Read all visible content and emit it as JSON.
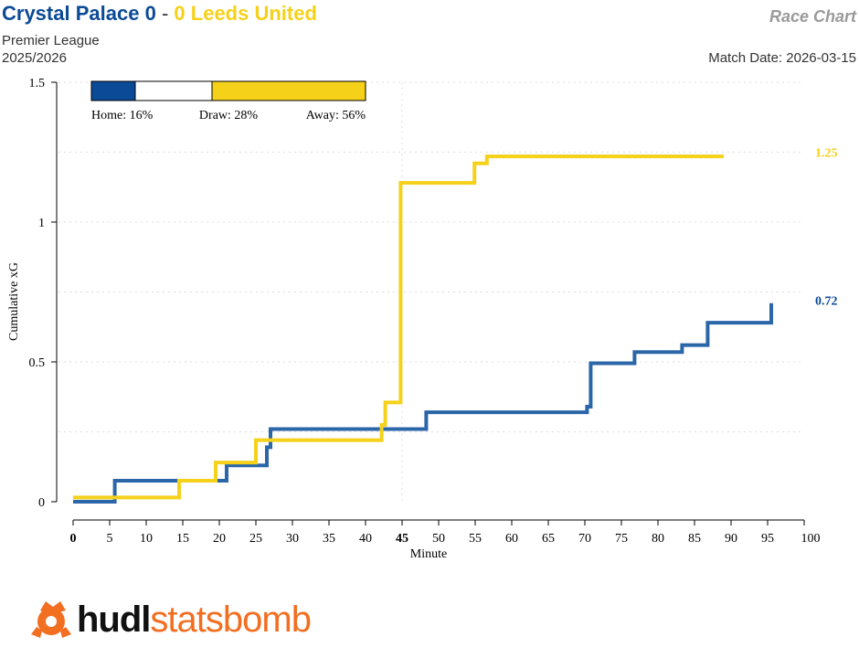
{
  "header": {
    "home_team": "Crystal Palace",
    "home_score": "0",
    "separator": "-",
    "away_score": "0",
    "away_team": "Leeds United",
    "competition": "Premier League",
    "season": "2025/2026",
    "chart_name": "Race Chart",
    "match_date_label": "Match Date:",
    "match_date": "2026-03-15"
  },
  "colors": {
    "home": "#2a66a8",
    "away": "#f5d11a",
    "home_text": "#0b4a96",
    "draw": "#ffffff"
  },
  "chart_data": {
    "type": "line",
    "xlabel": "Minute",
    "ylabel": "Cumulative xG",
    "xlim": [
      0,
      100
    ],
    "ylim": [
      0,
      1.5
    ],
    "x_ticks": [
      0,
      5,
      10,
      15,
      20,
      25,
      30,
      35,
      40,
      45,
      50,
      55,
      60,
      65,
      70,
      75,
      80,
      85,
      90,
      95,
      100
    ],
    "x_tick_labels": [
      "0",
      "5",
      "10",
      "15",
      "20",
      "25",
      "30",
      "35",
      "40",
      "45",
      "50",
      "55",
      "60",
      "65",
      "70",
      "75",
      "80",
      "85",
      "90",
      "95",
      "100"
    ],
    "y_ticks": [
      0,
      0.5,
      1,
      1.5
    ],
    "y_tick_labels": [
      "0",
      "0.5",
      "1",
      "1.5"
    ],
    "grid": true,
    "series": [
      {
        "name": "Crystal Palace",
        "color": "#2a66a8",
        "points": [
          [
            0,
            0
          ],
          [
            5.7,
            0.075
          ],
          [
            21,
            0.13
          ],
          [
            26.5,
            0.195
          ],
          [
            27,
            0.26
          ],
          [
            48.3,
            0.32
          ],
          [
            70.3,
            0.34
          ],
          [
            70.8,
            0.495
          ],
          [
            76.8,
            0.535
          ],
          [
            83.3,
            0.56
          ],
          [
            86.8,
            0.64
          ],
          [
            95.5,
            0.71
          ]
        ],
        "end_x": 95.5,
        "final_label": "0.72"
      },
      {
        "name": "Leeds United",
        "color": "#f5d11a",
        "points": [
          [
            0,
            0.015
          ],
          [
            14.5,
            0.075
          ],
          [
            19.5,
            0.14
          ],
          [
            25,
            0.22
          ],
          [
            42.2,
            0.275
          ],
          [
            42.7,
            0.355
          ],
          [
            44.8,
            1.14
          ],
          [
            54.9,
            1.21
          ],
          [
            56.6,
            1.235
          ]
        ],
        "end_x": 89,
        "final_label": "1.25"
      }
    ],
    "win_probability": {
      "home_label": "Home: 16%",
      "home": 16,
      "draw_label": "Draw: 28%",
      "draw": 28,
      "away_label": "Away: 56%",
      "away": 56
    }
  },
  "logo": {
    "part1": "hudl",
    "part2": "statsbomb"
  }
}
